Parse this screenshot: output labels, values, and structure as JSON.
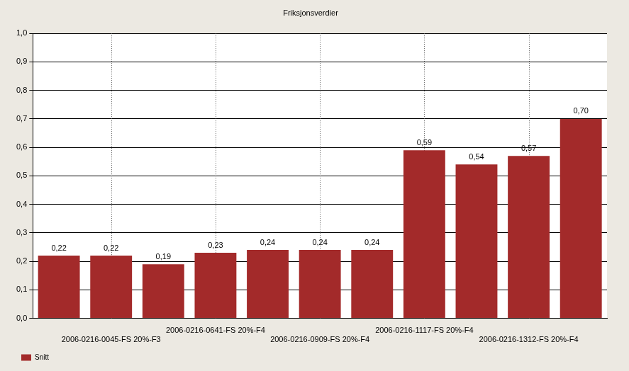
{
  "chart_data": {
    "type": "bar",
    "title": "Friksjonsverdier",
    "categories": [
      null,
      "2006-0216-0045-FS 20%-F3",
      null,
      "2006-0216-0641-FS 20%-F4",
      null,
      "2006-0216-0909-FS 20%-F4",
      null,
      "2006-0216-1117-FS 20%-F4",
      null,
      "2006-0216-1312-FS 20%-F4",
      null
    ],
    "series": [
      {
        "name": "Snitt",
        "color": "#a32a2a",
        "values": [
          0.22,
          0.22,
          0.19,
          0.23,
          0.24,
          0.24,
          0.24,
          0.59,
          0.54,
          0.57,
          0.7
        ],
        "value_labels": [
          "0,22",
          "0,22",
          "0,19",
          "0,23",
          "0,24",
          "0,24",
          "0,24",
          "0,59",
          "0,54",
          "0,57",
          "0,70"
        ]
      }
    ],
    "ylim": [
      0,
      1
    ],
    "yticks": [
      {
        "value": 0,
        "label": "0,0"
      },
      {
        "value": 0.1,
        "label": "0,1"
      },
      {
        "value": 0.2,
        "label": "0,2"
      },
      {
        "value": 0.3,
        "label": "0,3"
      },
      {
        "value": 0.4,
        "label": "0,4"
      },
      {
        "value": 0.5,
        "label": "0,5"
      },
      {
        "value": 0.6,
        "label": "0,6"
      },
      {
        "value": 0.7,
        "label": "0,7"
      },
      {
        "value": 0.8,
        "label": "0,8"
      },
      {
        "value": 0.9,
        "label": "0,9"
      },
      {
        "value": 1,
        "label": "1,0"
      }
    ],
    "grid": true,
    "legend": "bottom-left",
    "data_labels": true
  }
}
